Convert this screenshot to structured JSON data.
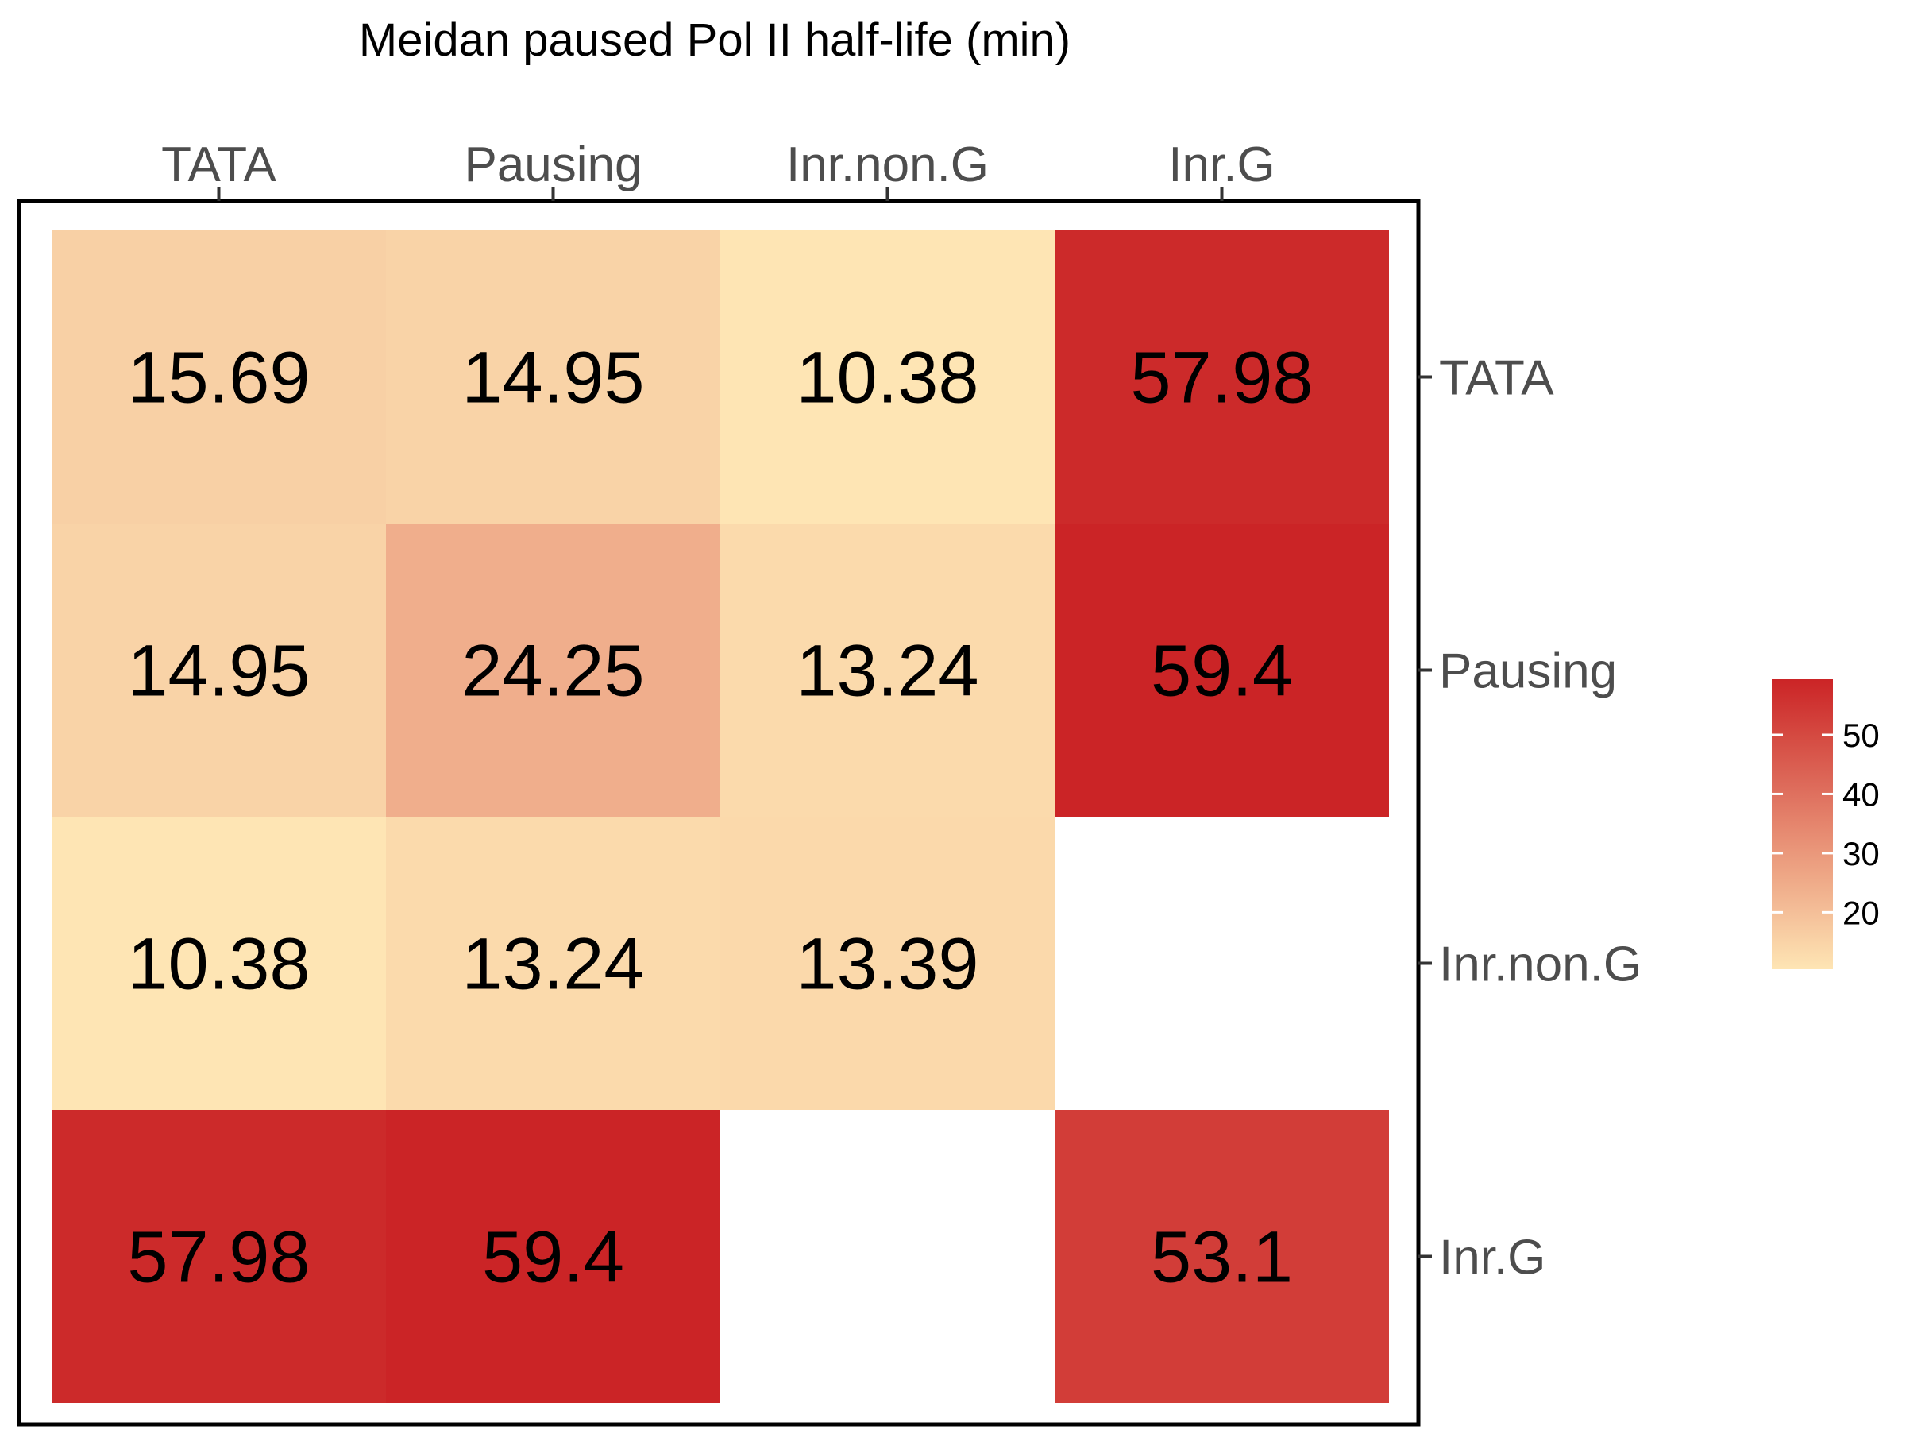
{
  "chart_data": {
    "type": "heatmap",
    "title": "Meidan paused Pol II half-life (min)",
    "x_categories": [
      "TATA",
      "Pausing",
      "Inr.non.G",
      "Inr.G"
    ],
    "y_categories": [
      "TATA",
      "Pausing",
      "Inr.non.G",
      "Inr.G"
    ],
    "x_axis_position": "top",
    "y_axis_position": "right",
    "cells": [
      {
        "x": "TATA",
        "y": "TATA",
        "value": 15.69,
        "label": "15.69"
      },
      {
        "x": "Pausing",
        "y": "TATA",
        "value": 14.95,
        "label": "14.95"
      },
      {
        "x": "Inr.non.G",
        "y": "TATA",
        "value": 10.38,
        "label": "10.38"
      },
      {
        "x": "Inr.G",
        "y": "TATA",
        "value": 57.98,
        "label": "57.98"
      },
      {
        "x": "TATA",
        "y": "Pausing",
        "value": 14.95,
        "label": "14.95"
      },
      {
        "x": "Pausing",
        "y": "Pausing",
        "value": 24.25,
        "label": "24.25"
      },
      {
        "x": "Inr.non.G",
        "y": "Pausing",
        "value": 13.24,
        "label": "13.24"
      },
      {
        "x": "Inr.G",
        "y": "Pausing",
        "value": 59.4,
        "label": "59.4"
      },
      {
        "x": "TATA",
        "y": "Inr.non.G",
        "value": 10.38,
        "label": "10.38"
      },
      {
        "x": "Pausing",
        "y": "Inr.non.G",
        "value": 13.24,
        "label": "13.24"
      },
      {
        "x": "Inr.non.G",
        "y": "Inr.non.G",
        "value": 13.39,
        "label": "13.39"
      },
      {
        "x": "TATA",
        "y": "Inr.G",
        "value": 57.98,
        "label": "57.98"
      },
      {
        "x": "Pausing",
        "y": "Inr.G",
        "value": 59.4,
        "label": "59.4"
      },
      {
        "x": "Inr.G",
        "y": "Inr.G",
        "value": 53.1,
        "label": "53.1"
      }
    ],
    "color_scale": {
      "low_color": "#FEE5B4",
      "high_color": "#CB2426",
      "min": 10.38,
      "max": 59.4,
      "legend_ticks": [
        20,
        30,
        40,
        50
      ],
      "legend_placement": "right"
    },
    "grid": false
  }
}
